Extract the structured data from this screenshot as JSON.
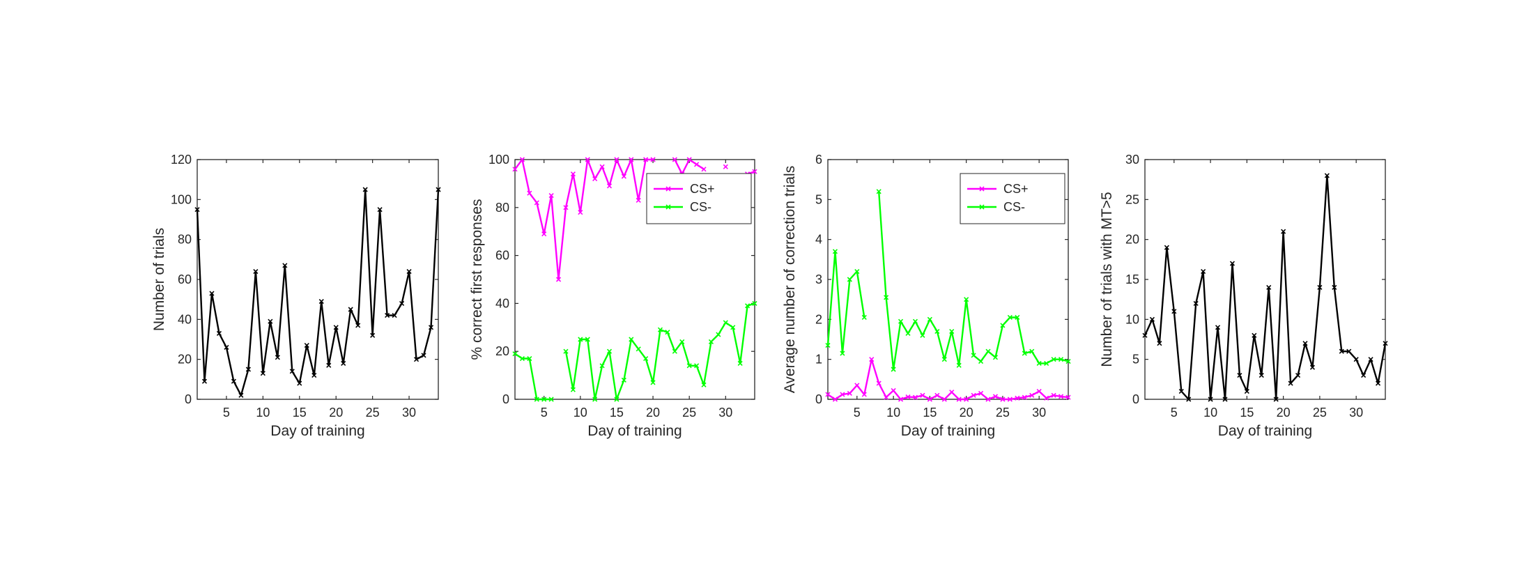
{
  "chart_data": [
    {
      "type": "line",
      "xlabel": "Day of training",
      "ylabel": "Number of trials",
      "xlim": [
        1,
        34
      ],
      "ylim": [
        0,
        120
      ],
      "xticks": [
        5,
        10,
        15,
        20,
        25,
        30
      ],
      "yticks": [
        0,
        20,
        40,
        60,
        80,
        100,
        120
      ],
      "grid": false,
      "series": [
        {
          "color": "#000000",
          "marker": "x",
          "x": [
            1,
            2,
            3,
            4,
            5,
            6,
            7,
            8,
            9,
            10,
            11,
            12,
            13,
            14,
            15,
            16,
            17,
            18,
            19,
            20,
            21,
            22,
            23,
            24,
            25,
            26,
            27,
            28,
            29,
            30,
            31,
            32,
            33,
            34
          ],
          "y": [
            95,
            9,
            53,
            33,
            26,
            9,
            2,
            15,
            64,
            13,
            39,
            21,
            67,
            14,
            8,
            27,
            12,
            49,
            17,
            36,
            18,
            45,
            37,
            105,
            32,
            95,
            42,
            42,
            48,
            64,
            20,
            22,
            36,
            105
          ]
        }
      ]
    },
    {
      "type": "line",
      "xlabel": "Day of training",
      "ylabel": "% correct first responses",
      "xlim": [
        1,
        34
      ],
      "ylim": [
        0,
        100
      ],
      "xticks": [
        5,
        10,
        15,
        20,
        25,
        30
      ],
      "yticks": [
        0,
        20,
        40,
        60,
        80,
        100
      ],
      "grid": false,
      "legend": "upper-right",
      "series": [
        {
          "name": "CS+",
          "color": "#ff00ff",
          "marker": "x",
          "x": [
            1,
            2,
            3,
            4,
            5,
            6,
            7,
            8,
            9,
            10,
            11,
            12,
            13,
            14,
            15,
            16,
            17,
            18,
            19,
            20,
            21,
            22,
            23,
            24,
            25,
            26,
            27,
            28,
            29,
            30,
            31,
            32,
            33,
            34
          ],
          "y": [
            96,
            100,
            86,
            82,
            69,
            85,
            50,
            80,
            94,
            78,
            100,
            92,
            97,
            89,
            100,
            93,
            100,
            83,
            100,
            100,
            null,
            null,
            100,
            94,
            100,
            98,
            96,
            null,
            null,
            97,
            null,
            null,
            94,
            95
          ]
        },
        {
          "name": "CS-",
          "color": "#00ff00",
          "marker": "x",
          "x": [
            1,
            2,
            3,
            4,
            5,
            6,
            7,
            8,
            9,
            10,
            11,
            12,
            13,
            14,
            15,
            16,
            17,
            18,
            19,
            20,
            21,
            22,
            23,
            24,
            25,
            26,
            27,
            28,
            29,
            30,
            31,
            32,
            33,
            34
          ],
          "y": [
            19,
            17,
            17,
            0,
            0,
            0,
            null,
            20,
            4,
            25,
            25,
            0,
            14,
            20,
            0,
            8,
            25,
            21,
            17,
            7,
            29,
            28,
            20,
            24,
            14,
            14,
            6,
            24,
            27,
            32,
            30,
            15,
            39,
            40
          ]
        }
      ]
    },
    {
      "type": "line",
      "xlabel": "Day of training",
      "ylabel": "Average number of correction trials",
      "xlim": [
        1,
        34
      ],
      "ylim": [
        0,
        6
      ],
      "xticks": [
        5,
        10,
        15,
        20,
        25,
        30
      ],
      "yticks": [
        0,
        1,
        2,
        3,
        4,
        5,
        6
      ],
      "grid": false,
      "legend": "upper-right",
      "series": [
        {
          "name": "CS+",
          "color": "#ff00ff",
          "marker": "x",
          "x": [
            1,
            2,
            3,
            4,
            5,
            6,
            7,
            8,
            9,
            10,
            11,
            12,
            13,
            14,
            15,
            16,
            17,
            18,
            19,
            20,
            21,
            22,
            23,
            24,
            25,
            26,
            27,
            28,
            29,
            30,
            31,
            32,
            33,
            34
          ],
          "y": [
            0.12,
            0,
            0.12,
            0.15,
            0.35,
            0.12,
            1,
            0.4,
            0.05,
            0.22,
            0,
            0.06,
            0.05,
            0.1,
            0,
            0.1,
            0,
            0.18,
            0,
            0,
            0.1,
            0.15,
            0,
            0.07,
            0,
            0,
            0.03,
            0.05,
            0.1,
            0.2,
            0.03,
            0.1,
            0.07,
            0.05
          ]
        },
        {
          "name": "CS-",
          "color": "#00ff00",
          "marker": "x",
          "x": [
            1,
            2,
            3,
            4,
            5,
            6,
            7,
            8,
            9,
            10,
            11,
            12,
            13,
            14,
            15,
            16,
            17,
            18,
            19,
            20,
            21,
            22,
            23,
            24,
            25,
            26,
            27,
            28,
            29,
            30,
            31,
            32,
            33,
            34
          ],
          "y": [
            1.35,
            3.7,
            1.15,
            3,
            3.2,
            2.05,
            null,
            5.2,
            2.55,
            0.75,
            1.95,
            1.65,
            1.95,
            1.6,
            2,
            1.7,
            1,
            1.7,
            0.85,
            2.5,
            1.1,
            0.95,
            1.2,
            1.05,
            1.85,
            2.05,
            2.05,
            1.15,
            1.2,
            0.9,
            0.9,
            1,
            1,
            0.95
          ]
        }
      ]
    },
    {
      "type": "line",
      "xlabel": "Day of training",
      "ylabel": "Number of trials with MT>5",
      "xlim": [
        1,
        34
      ],
      "ylim": [
        0,
        30
      ],
      "xticks": [
        5,
        10,
        15,
        20,
        25,
        30
      ],
      "yticks": [
        0,
        5,
        10,
        15,
        20,
        25,
        30
      ],
      "grid": false,
      "series": [
        {
          "color": "#000000",
          "marker": "x",
          "x": [
            1,
            2,
            3,
            4,
            5,
            6,
            7,
            8,
            9,
            10,
            11,
            12,
            13,
            14,
            15,
            16,
            17,
            18,
            19,
            20,
            21,
            22,
            23,
            24,
            25,
            26,
            27,
            28,
            29,
            30,
            31,
            32,
            33,
            34
          ],
          "y": [
            8,
            10,
            7,
            19,
            11,
            1,
            0,
            12,
            16,
            0,
            9,
            0,
            17,
            3,
            1,
            8,
            3,
            14,
            0,
            21,
            2,
            3,
            7,
            4,
            14,
            28,
            14,
            6,
            6,
            5,
            3,
            5,
            2,
            7
          ]
        }
      ]
    }
  ]
}
